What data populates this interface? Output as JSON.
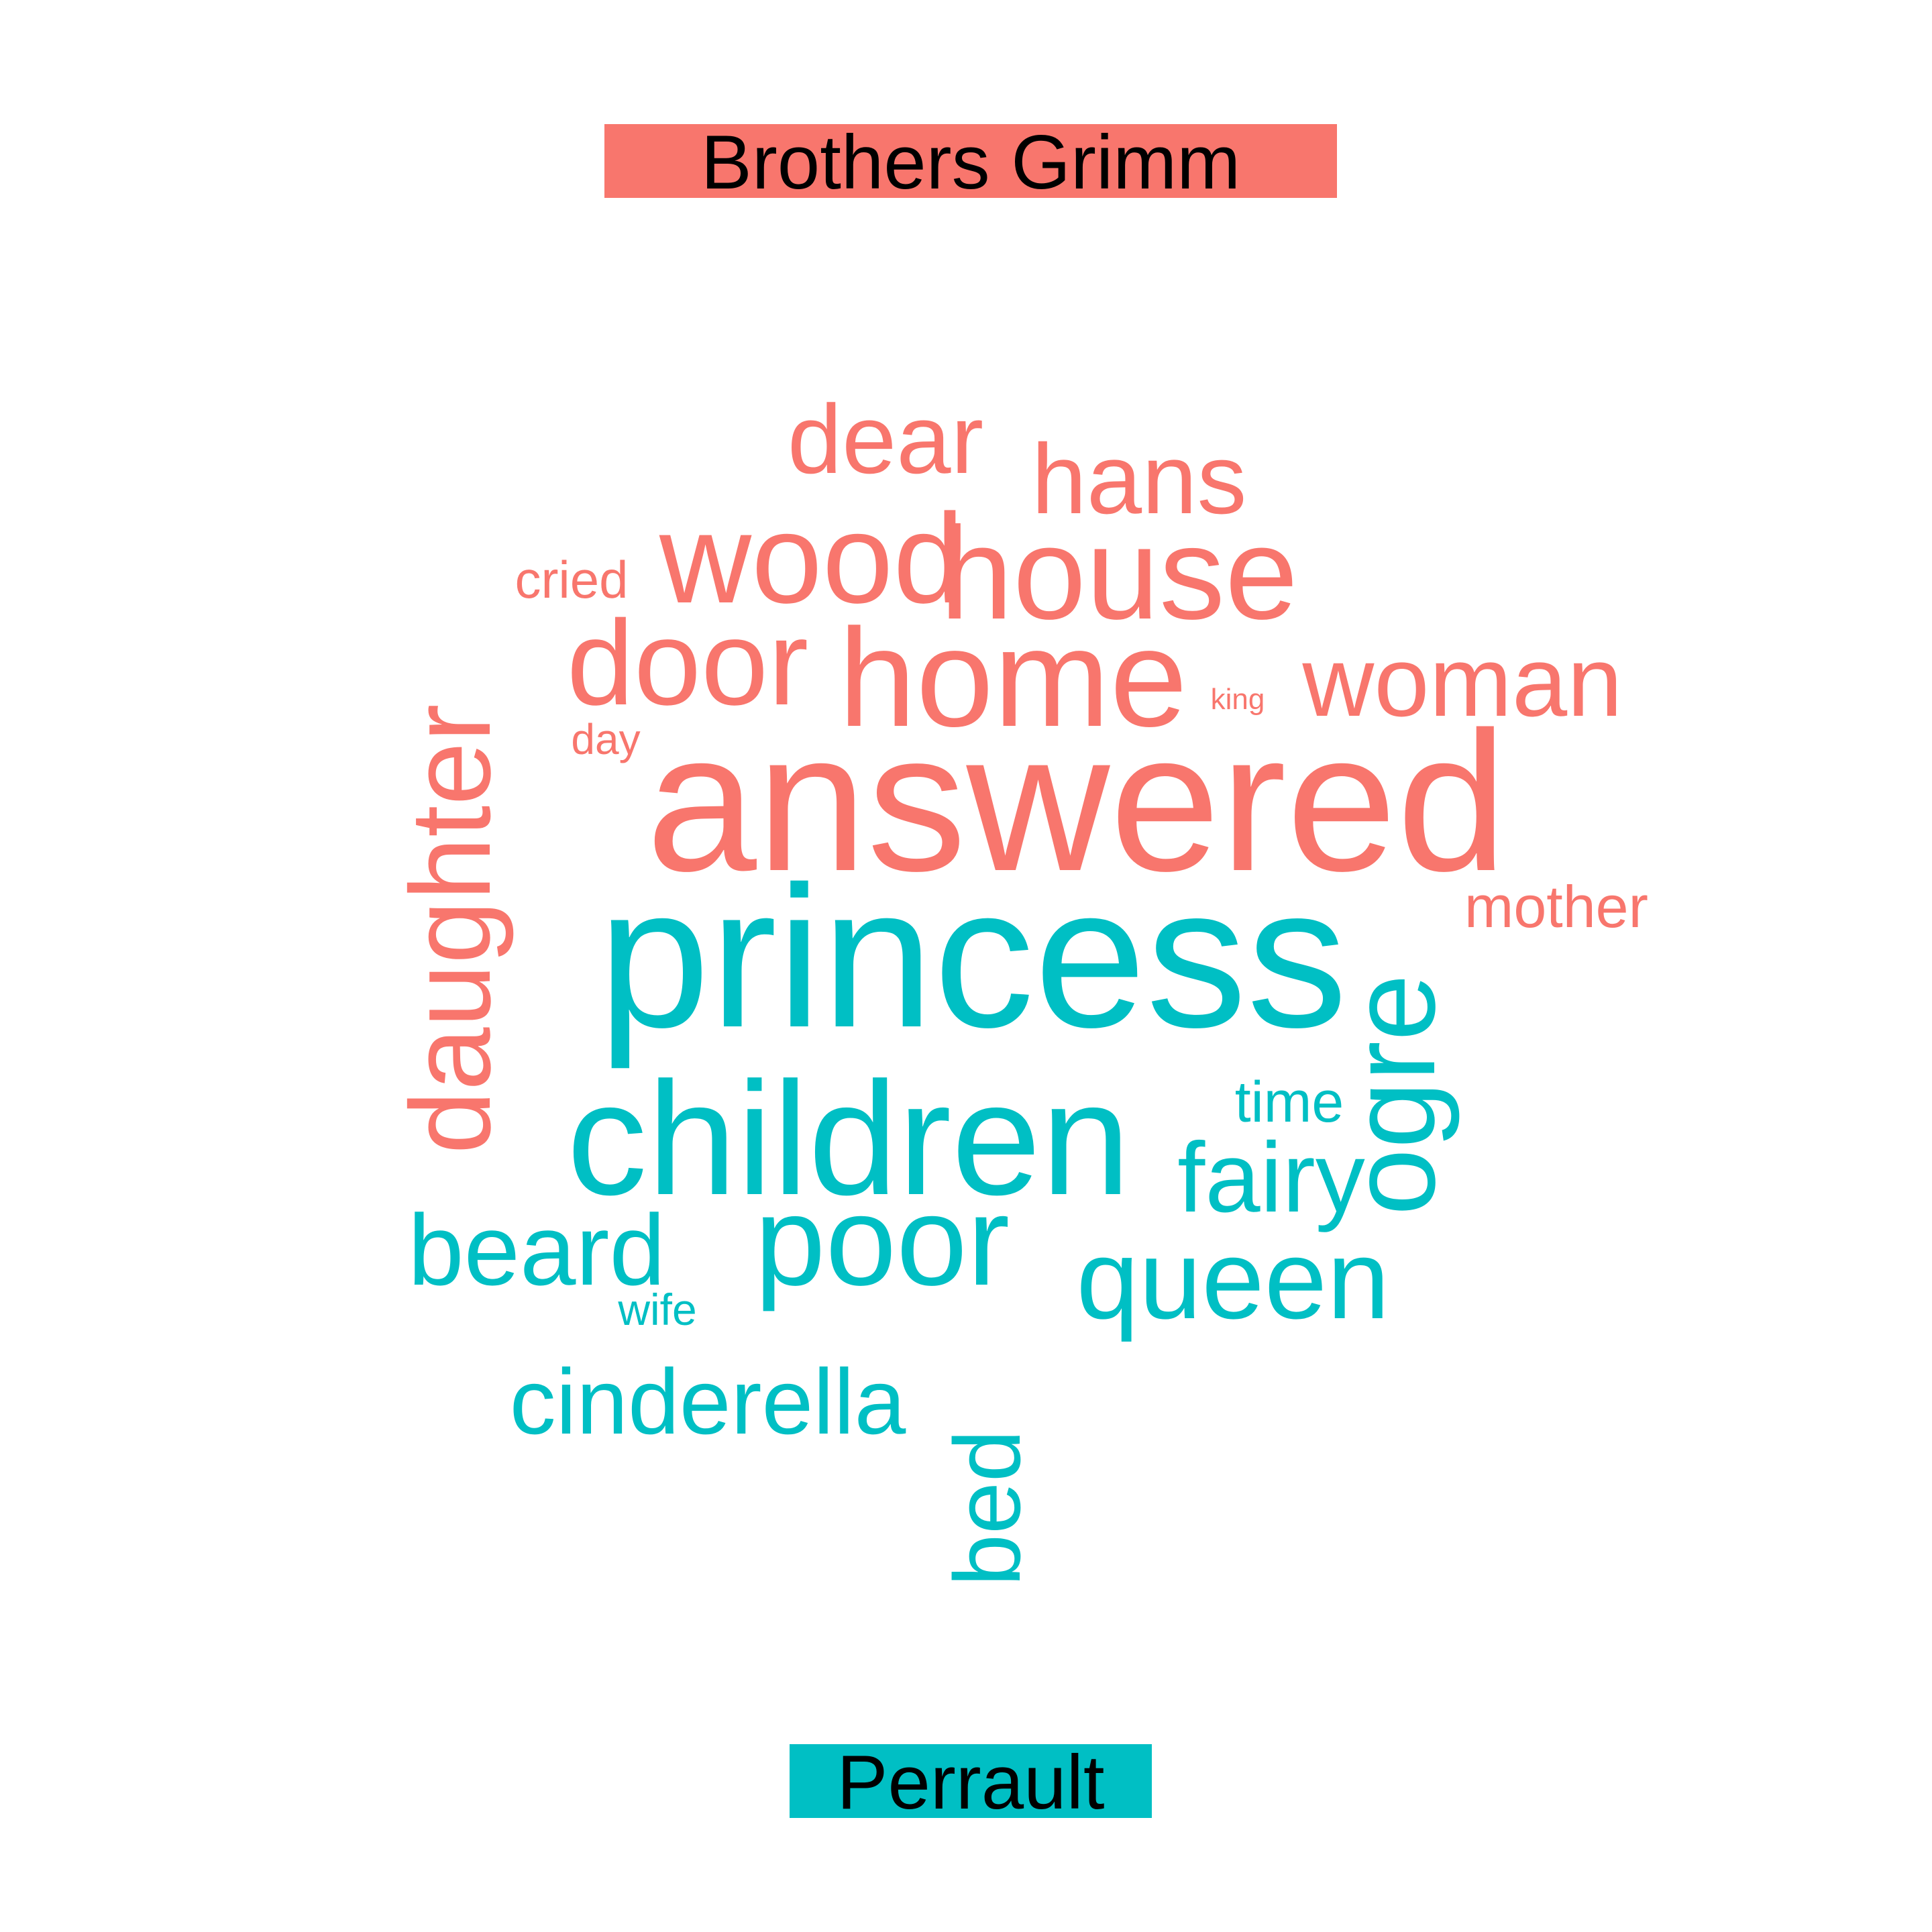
{
  "chart_data": {
    "type": "wordcloud",
    "groups": [
      {
        "name": "Brothers Grimm",
        "color": "#F8766D",
        "words": [
          {
            "text": "answered",
            "rank": 1
          },
          {
            "text": "home",
            "rank": 2
          },
          {
            "text": "house",
            "rank": 3
          },
          {
            "text": "wood",
            "rank": 4
          },
          {
            "text": "door",
            "rank": 5
          },
          {
            "text": "woman",
            "rank": 6
          },
          {
            "text": "daughter",
            "rank": 7
          },
          {
            "text": "hans",
            "rank": 8
          },
          {
            "text": "dear",
            "rank": 9
          },
          {
            "text": "mother",
            "rank": 10
          },
          {
            "text": "cried",
            "rank": 11
          },
          {
            "text": "day",
            "rank": 12
          },
          {
            "text": "king",
            "rank": 13
          }
        ]
      },
      {
        "name": "Perrault",
        "color": "#00BFC4",
        "words": [
          {
            "text": "princess",
            "rank": 1
          },
          {
            "text": "children",
            "rank": 2
          },
          {
            "text": "poor",
            "rank": 3
          },
          {
            "text": "queen",
            "rank": 4
          },
          {
            "text": "ogre",
            "rank": 5
          },
          {
            "text": "fairy",
            "rank": 6
          },
          {
            "text": "beard",
            "rank": 7
          },
          {
            "text": "cinderella",
            "rank": 8
          },
          {
            "text": "bed",
            "rank": 9
          },
          {
            "text": "time",
            "rank": 10
          },
          {
            "text": "wife",
            "rank": 11
          }
        ]
      }
    ]
  }
}
